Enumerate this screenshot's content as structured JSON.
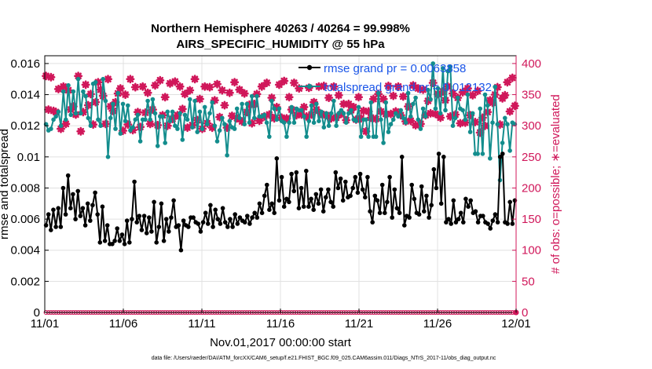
{
  "chart_data": {
    "type": "line",
    "title": "Northern Hemisphere 40263 / 40264 = 99.998%",
    "subtitle": "AIRS_SPECIFIC_HUMIDITY @ 55 hPa",
    "xlabel": "Nov.01,2017 00:00:00 start",
    "ylabel_left": "rmse and totalspread",
    "ylabel_right": "# of obs: o=possible; ∗=evaluated",
    "x_tick_labels": [
      "11/01",
      "11/06",
      "11/11",
      "11/16",
      "11/21",
      "11/26",
      "12/01"
    ],
    "x_tick_days": [
      0,
      5,
      10,
      15,
      20,
      25,
      30
    ],
    "xlim": [
      0,
      30
    ],
    "ylim_left": [
      0,
      0.0165
    ],
    "y_ticks_left": [
      0,
      0.002,
      0.004,
      0.006,
      0.008,
      0.01,
      0.012,
      0.014,
      0.016
    ],
    "y_tick_labels_left": [
      "0",
      "0.002",
      "0.004",
      "0.006",
      "0.008",
      "0.01",
      "0.012",
      "0.014",
      "0.016"
    ],
    "ylim_right": [
      0,
      412.5
    ],
    "y_ticks_right": [
      0,
      50,
      100,
      150,
      200,
      250,
      300,
      350,
      400
    ],
    "y_tick_labels_right": [
      "0",
      "50",
      "100",
      "150",
      "200",
      "250",
      "300",
      "350",
      "400"
    ],
    "grid": true,
    "legend_position": "top-right",
    "series": [
      {
        "name": "rmse grand pr = 0.0063858",
        "color": "#000000",
        "axis": "left",
        "marker": "dot",
        "values": [
          0.0056,
          0.0063,
          0.0053,
          0.0066,
          0.0055,
          0.0067,
          0.0055,
          0.008,
          0.0063,
          0.0088,
          0.0067,
          0.0076,
          0.006,
          0.0078,
          0.0062,
          0.0067,
          0.0056,
          0.007,
          0.0059,
          0.0069,
          0.0077,
          0.0063,
          0.0045,
          0.0068,
          0.0046,
          0.0056,
          0.0044,
          0.0044,
          0.0046,
          0.0054,
          0.0046,
          0.005,
          0.0044,
          0.0059,
          0.0045,
          0.006,
          0.0084,
          0.0058,
          0.0062,
          0.0053,
          0.0062,
          0.0051,
          0.0061,
          0.0052,
          0.0071,
          0.0045,
          0.0055,
          0.007,
          0.0046,
          0.006,
          0.0052,
          0.0061,
          0.0072,
          0.0055,
          0.0056,
          0.004,
          0.0059,
          0.0056,
          0.0055,
          0.0061,
          0.0061,
          0.0058,
          0.0057,
          0.0052,
          0.0058,
          0.0064,
          0.0057,
          0.0069,
          0.0055,
          0.0066,
          0.006,
          0.0057,
          0.0067,
          0.0058,
          0.0055,
          0.006,
          0.0055,
          0.0063,
          0.0057,
          0.0061,
          0.0059,
          0.0058,
          0.0062,
          0.0057,
          0.0061,
          0.0064,
          0.0061,
          0.007,
          0.0064,
          0.0075,
          0.0082,
          0.0066,
          0.007,
          0.0064,
          0.0099,
          0.0072,
          0.0087,
          0.0068,
          0.0073,
          0.0071,
          0.0089,
          0.0078,
          0.009,
          0.0067,
          0.008,
          0.0068,
          0.0091,
          0.0068,
          0.0073,
          0.0066,
          0.0076,
          0.007,
          0.0079,
          0.0065,
          0.0074,
          0.0079,
          0.0071,
          0.0068,
          0.009,
          0.008,
          0.0086,
          0.0072,
          0.0084,
          0.0074,
          0.0075,
          0.008,
          0.0087,
          0.0077,
          0.0089,
          0.0079,
          0.0074,
          0.0087,
          0.0065,
          0.0058,
          0.0075,
          0.0072,
          0.0064,
          0.0082,
          0.0064,
          0.0071,
          0.0087,
          0.0061,
          0.0079,
          0.0067,
          0.0064,
          0.01,
          0.0056,
          0.0062,
          0.0061,
          0.0082,
          0.0073,
          0.0064,
          0.0063,
          0.0081,
          0.0065,
          0.0075,
          0.0061,
          0.0069,
          0.0092,
          0.008,
          0.0102,
          0.007,
          0.01,
          0.0058,
          0.006,
          0.0057,
          0.0072,
          0.0058,
          0.006,
          0.0064,
          0.0058,
          0.0073,
          0.0068,
          0.0072,
          0.0064,
          0.0065,
          0.0058,
          0.0062,
          0.0062,
          0.0058,
          0.0057,
          0.0054,
          0.0059,
          0.0063,
          0.0058,
          0.01,
          0.0102,
          0.0058,
          0.0057,
          0.0071,
          0.0057,
          0.0072
        ]
      },
      {
        "name": "totalspread grand pr = 0.012132",
        "color": "#138d8d",
        "axis": "left",
        "marker": "dot",
        "values": [
          0.0121,
          0.0117,
          0.0118,
          0.0124,
          0.0126,
          0.0129,
          0.012,
          0.0142,
          0.0124,
          0.0146,
          0.0127,
          0.0142,
          0.0128,
          0.015,
          0.0128,
          0.0142,
          0.0139,
          0.0125,
          0.012,
          0.0147,
          0.0148,
          0.0124,
          0.012,
          0.015,
          0.0136,
          0.01,
          0.0125,
          0.0134,
          0.0118,
          0.0141,
          0.0115,
          0.0134,
          0.0123,
          0.0133,
          0.0117,
          0.0119,
          0.0124,
          0.0127,
          0.011,
          0.0124,
          0.0124,
          0.0136,
          0.0124,
          0.0137,
          0.0128,
          0.0107,
          0.0126,
          0.0126,
          0.0109,
          0.0129,
          0.0123,
          0.0129,
          0.012,
          0.0118,
          0.0128,
          0.0111,
          0.0127,
          0.0124,
          0.0137,
          0.0119,
          0.0136,
          0.0116,
          0.0129,
          0.0118,
          0.0132,
          0.0121,
          0.0128,
          0.0135,
          0.012,
          0.011,
          0.0117,
          0.0125,
          0.0121,
          0.0101,
          0.0123,
          0.0119,
          0.0118,
          0.0131,
          0.0125,
          0.0134,
          0.0121,
          0.0134,
          0.0122,
          0.0139,
          0.0125,
          0.0139,
          0.0126,
          0.0126,
          0.0127,
          0.0122,
          0.0113,
          0.0136,
          0.0131,
          0.0124,
          0.0131,
          0.0123,
          0.0122,
          0.0113,
          0.0122,
          0.0132,
          0.0122,
          0.0131,
          0.013,
          0.013,
          0.0126,
          0.0113,
          0.0123,
          0.0133,
          0.0122,
          0.0134,
          0.0123,
          0.0129,
          0.0119,
          0.0128,
          0.012,
          0.0128,
          0.0136,
          0.012,
          0.0128,
          0.013,
          0.0128,
          0.0122,
          0.0128,
          0.013,
          0.0124,
          0.0123,
          0.0132,
          0.0113,
          0.0124,
          0.0124,
          0.0113,
          0.0135,
          0.0113,
          0.0113,
          0.0141,
          0.0124,
          0.0109,
          0.0135,
          0.0116,
          0.0121,
          0.0124,
          0.0128,
          0.0126,
          0.013,
          0.0125,
          0.0122,
          0.0141,
          0.0126,
          0.0134,
          0.0138,
          0.0124,
          0.0118,
          0.0131,
          0.0126,
          0.0143,
          0.0137,
          0.016,
          0.0131,
          0.0144,
          0.0128,
          0.0157,
          0.013,
          0.0155,
          0.0158,
          0.012,
          0.0125,
          0.0138,
          0.0131,
          0.013,
          0.0124,
          0.014,
          0.0116,
          0.0128,
          0.0102,
          0.0102,
          0.0131,
          0.0102,
          0.014,
          0.0133,
          0.0099,
          0.0122,
          0.0145,
          0.0121,
          0.0085,
          0.0109,
          0.0125,
          0.0121,
          0.0104,
          0.0122,
          0.0121
        ]
      },
      {
        "name": "possible",
        "color": "#d0175a",
        "axis": "right",
        "marker": "circle",
        "values": [
          0,
          0,
          0,
          0,
          0,
          0,
          0,
          0,
          0,
          0,
          0,
          0,
          0,
          0,
          0,
          0,
          0,
          0,
          0,
          0,
          0,
          0,
          0,
          0,
          0,
          0,
          0,
          0,
          0,
          0,
          0,
          0,
          0,
          0,
          0,
          0,
          0,
          0,
          0,
          0,
          0,
          0,
          0,
          0,
          0,
          0,
          0,
          0,
          0,
          0,
          0,
          0,
          0,
          0,
          0,
          0,
          0,
          0,
          0,
          0,
          0,
          0,
          0,
          0,
          0,
          0,
          0,
          0,
          0,
          0,
          0,
          0,
          0,
          0,
          0,
          0,
          0,
          0,
          0,
          0,
          0,
          0,
          0,
          0,
          0,
          0,
          0,
          0,
          0,
          0,
          0,
          0,
          0,
          0,
          0,
          0,
          0,
          0,
          0,
          0,
          0,
          0,
          0,
          0,
          0,
          0,
          0,
          0,
          0,
          0,
          0,
          0,
          0,
          0,
          0,
          0,
          0,
          0,
          0,
          0,
          0,
          0,
          0,
          0,
          0,
          0,
          0,
          0,
          0,
          0,
          0,
          0,
          0,
          0,
          0,
          0,
          0,
          0,
          0,
          0,
          0,
          0,
          0,
          0,
          0,
          0,
          0,
          0,
          0,
          0,
          0,
          0,
          0,
          0,
          0,
          0,
          0,
          0,
          0,
          0,
          0,
          0,
          0,
          0,
          0,
          0,
          0,
          0,
          0,
          0,
          0,
          0,
          0,
          0,
          0,
          0,
          0,
          0,
          0,
          0,
          0,
          0,
          0,
          0,
          0,
          0,
          0,
          0,
          0,
          0
        ]
      },
      {
        "name": "evaluated",
        "color": "#d0175a",
        "axis": "right",
        "marker": "star",
        "values": [
          380,
          326,
          378,
          324,
          322,
          359,
          295,
          363,
          303,
          357,
          326,
          331,
          318,
          380,
          291,
          322,
          366,
          333,
          351,
          302,
          338,
          370,
          358,
          348,
          303,
          375,
          331,
          324,
          338,
          352,
          360,
          292,
          350,
          302,
          375,
          293,
          362,
          322,
          298,
          363,
          321,
          353,
          303,
          326,
          365,
          301,
          373,
          317,
          346,
          300,
          368,
          311,
          371,
          317,
          363,
          327,
          351,
          297,
          357,
          301,
          375,
          309,
          343,
          295,
          363,
          304,
          362,
          297,
          341,
          367,
          314,
          357,
          333,
          297,
          353,
          316,
          370,
          312,
          358,
          307,
          352,
          322,
          334,
          304,
          335,
          351,
          308,
          363,
          315,
          369,
          318,
          345,
          312,
          330,
          366,
          313,
          372,
          312,
          346,
          326,
          369,
          317,
          360,
          318,
          330,
          315,
          361,
          318,
          338,
          326,
          363,
          319,
          364,
          317,
          345,
          312,
          363,
          313,
          349,
          319,
          335,
          309,
          335,
          325,
          330,
          310,
          346,
          312,
          324,
          291,
          323,
          313,
          343,
          311,
          351,
          323,
          343,
          319,
          364,
          319,
          348,
          323,
          363,
          317,
          347,
          307,
          331,
          308,
          365,
          301,
          360,
          303,
          358,
          317,
          340,
          320,
          369,
          319,
          351,
          313,
          355,
          341,
          363,
          315,
          352,
          318,
          345,
          304,
          354,
          305,
          360,
          317,
          349,
          306,
          356,
          289,
          313,
          300,
          322,
          341,
          337,
          350,
          362,
          302,
          344,
          349,
          370,
          323,
          377,
          332
        ]
      }
    ]
  },
  "footer": {
    "datafile": "data file: /Users/raeder/DAI/ATM_forcXX/CAM6_setup/f.e21.FHIST_BGC.f09_025.CAM6assim.011/Diags_NTrS_2017-11/obs_diag_output.nc"
  }
}
